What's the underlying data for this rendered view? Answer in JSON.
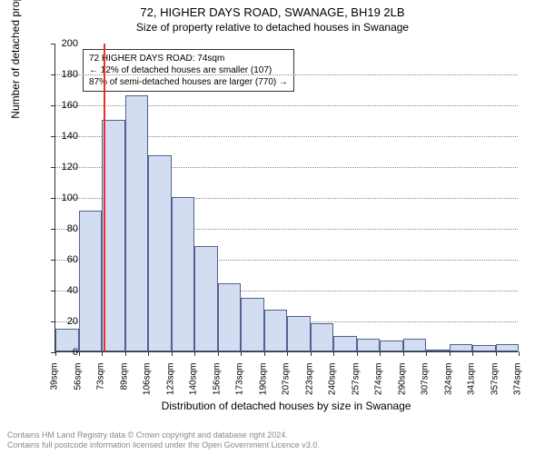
{
  "title": "72, HIGHER DAYS ROAD, SWANAGE, BH19 2LB",
  "subtitle": "Size of property relative to detached houses in Swanage",
  "ylabel": "Number of detached properties",
  "xlabel": "Distribution of detached houses by size in Swanage",
  "chart": {
    "type": "histogram",
    "ylim": [
      0,
      200
    ],
    "ytick_step": 20,
    "background_color": "#ffffff",
    "grid_color": "#888888",
    "bar_fill": "#d3ddf2",
    "bar_border": "#53618f",
    "marker_color": "#e83030",
    "marker_value": 74,
    "xticks": [
      "39sqm",
      "56sqm",
      "73sqm",
      "89sqm",
      "106sqm",
      "123sqm",
      "140sqm",
      "156sqm",
      "173sqm",
      "190sqm",
      "207sqm",
      "223sqm",
      "240sqm",
      "257sqm",
      "274sqm",
      "290sqm",
      "307sqm",
      "324sqm",
      "341sqm",
      "357sqm",
      "374sqm"
    ],
    "values": [
      15,
      91,
      150,
      166,
      127,
      100,
      68,
      44,
      35,
      27,
      23,
      18,
      10,
      8,
      7,
      8,
      0,
      5,
      4,
      5
    ]
  },
  "annotation": {
    "line1": "72 HIGHER DAYS ROAD: 74sqm",
    "line2": "← 12% of detached houses are smaller (107)",
    "line3": "87% of semi-detached houses are larger (770) →"
  },
  "footer": {
    "line1": "Contains HM Land Registry data © Crown copyright and database right 2024.",
    "line2": "Contains full postcode information licensed under the Open Government Licence v3.0."
  }
}
